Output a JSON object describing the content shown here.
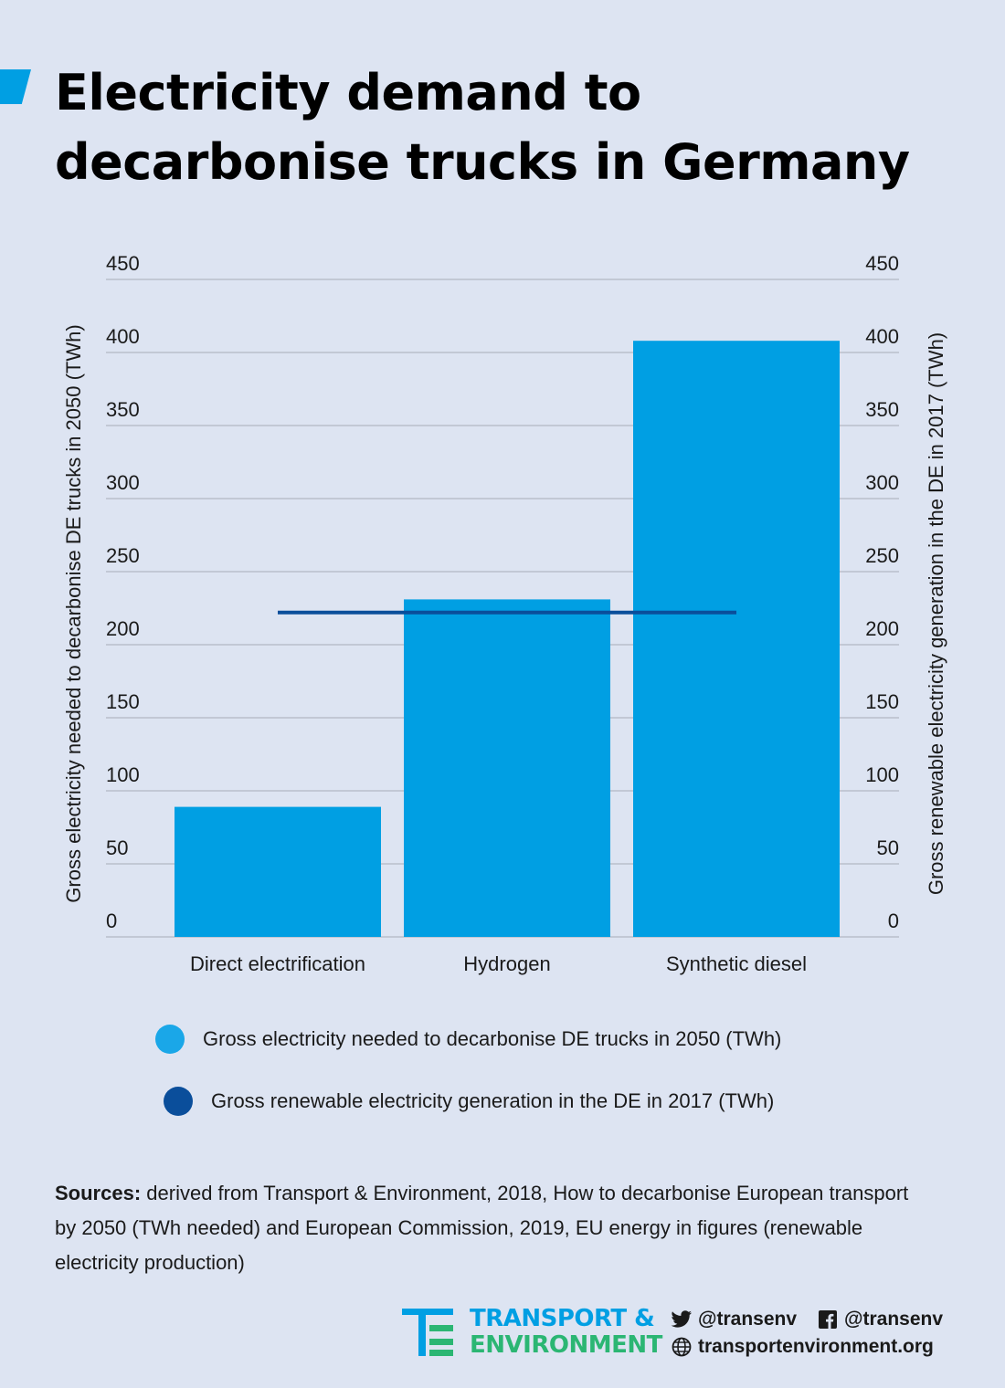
{
  "title": "Electricity demand to decarbonise trucks in Germany",
  "colors": {
    "bar": "#009fe3",
    "line": "#0a4e9b",
    "grid": "#b9bfcb",
    "accent": "#009fe3",
    "logo_green": "#2bb673"
  },
  "chart_data": {
    "type": "bar",
    "categories": [
      "Direct electrification",
      "Hydrogen",
      "Synthetic diesel"
    ],
    "series": [
      {
        "name": "Gross electricity needed to decarbonise DE trucks in 2050 (TWh)",
        "type": "bar",
        "values": [
          89,
          231,
          408
        ]
      },
      {
        "name": "Gross renewable electricity generation in the DE in 2017 (TWh)",
        "type": "line",
        "value": 222
      }
    ],
    "ylabel_left": "Gross electricity needed to decarbonise DE trucks in 2050 (TWh)",
    "ylabel_right": "Gross renewable electricity generation in the DE in 2017 (TWh)",
    "ylim": [
      0,
      450
    ],
    "yticks": [
      "0",
      "50",
      "100",
      "150",
      "200",
      "250",
      "300",
      "350",
      "400",
      "450"
    ],
    "grid": true,
    "legend_position": "bottom"
  },
  "legend": [
    {
      "label": "Gross electricity needed to decarbonise DE trucks in 2050 (TWh)",
      "icon": "light-blue-circle"
    },
    {
      "label": "Gross renewable electricity generation in the DE in 2017 (TWh)",
      "icon": "dark-blue-circle"
    }
  ],
  "sources": {
    "label": "Sources:",
    "text": " derived from Transport & Environment, 2018, How to decarbonise European transport by 2050 (TWh needed) and European Commission, 2019, EU energy in figures (renewable electricity production)"
  },
  "footer": {
    "logo_line1": "TRANSPORT &",
    "logo_line2": "ENVIRONMENT",
    "twitter": "@transenv",
    "facebook": "@transenv",
    "website": "transportenvironment.org"
  }
}
